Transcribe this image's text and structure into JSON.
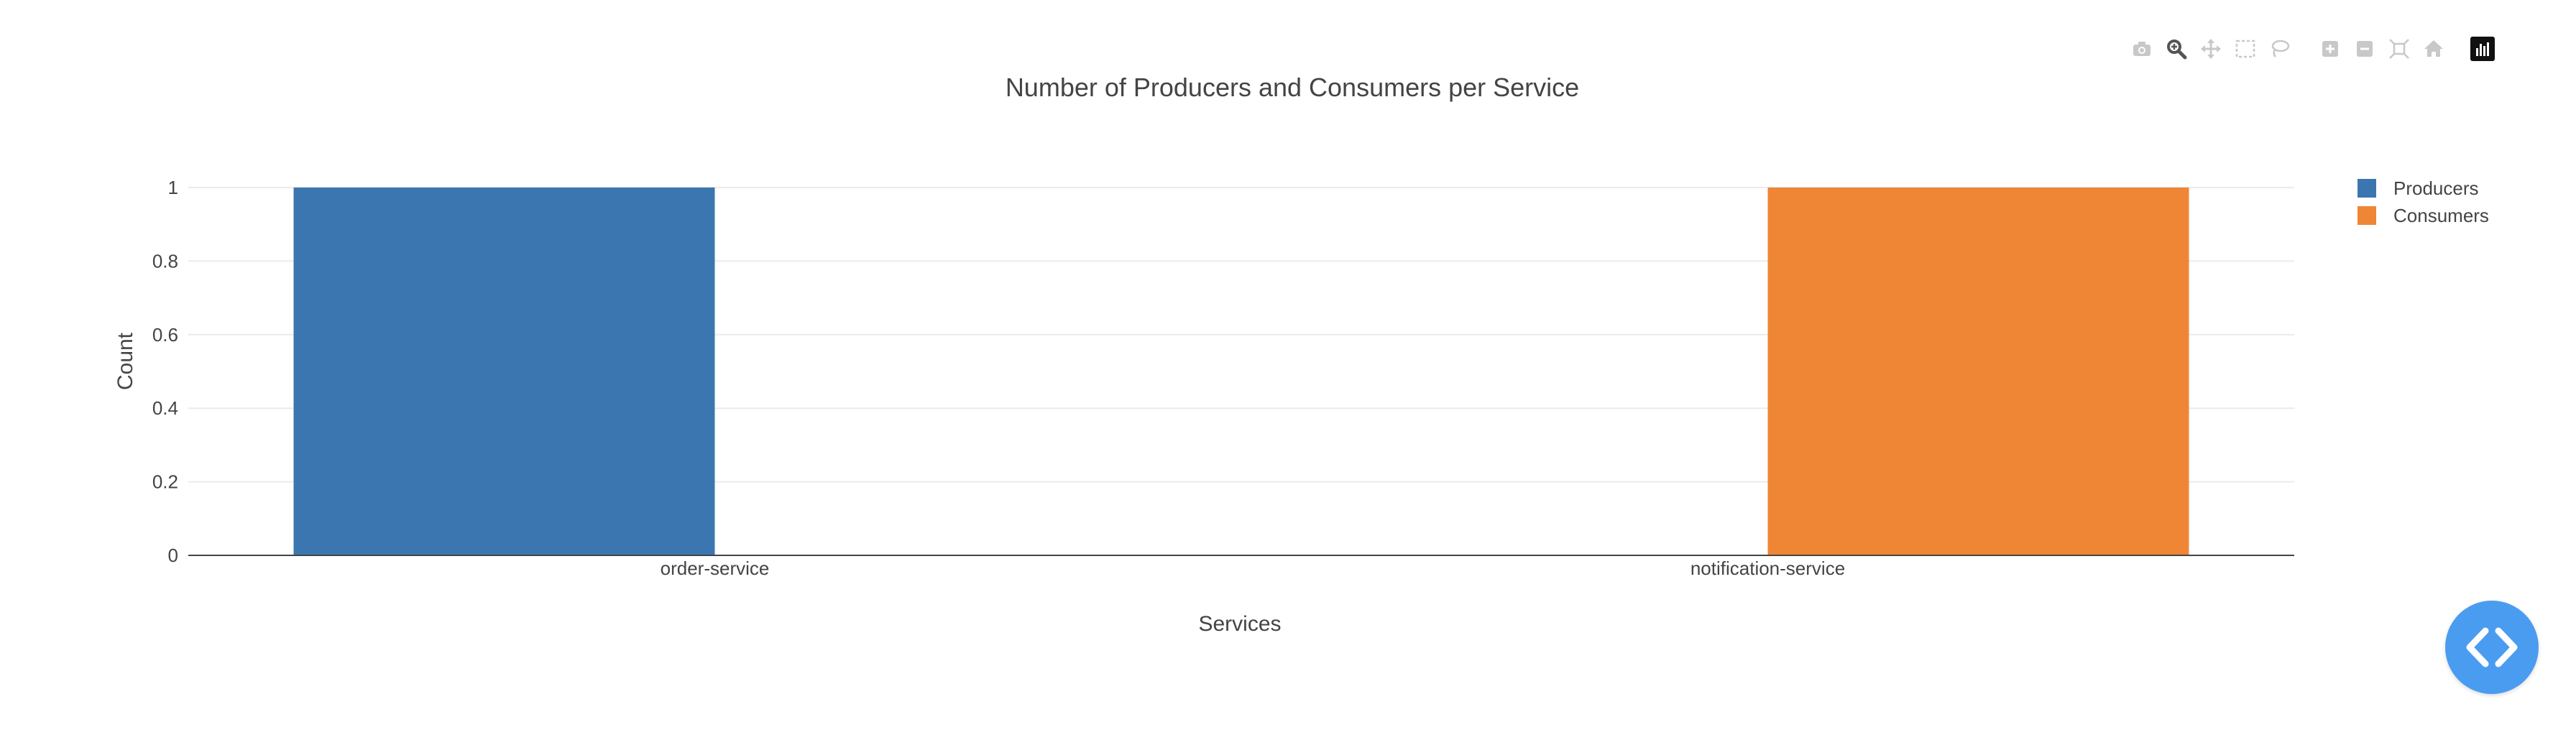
{
  "chart_data": {
    "type": "bar",
    "title": "Number of Producers and Consumers per Service",
    "xlabel": "Services",
    "ylabel": "Count",
    "categories": [
      "order-service",
      "notification-service"
    ],
    "series": [
      {
        "name": "Producers",
        "color": "#3b76b0",
        "values": [
          1,
          0
        ]
      },
      {
        "name": "Consumers",
        "color": "#ef8636",
        "values": [
          0,
          1
        ]
      }
    ],
    "ylim": [
      0,
      1
    ],
    "yticks": [
      "0",
      "0.2",
      "0.4",
      "0.6",
      "0.8",
      "1"
    ],
    "grid": true,
    "legend_position": "top-right"
  },
  "modebar": {
    "icons": [
      "camera-icon",
      "zoom-icon",
      "pan-icon",
      "box-select-icon",
      "lasso-icon",
      "zoom-in-icon",
      "zoom-out-icon",
      "autoscale-icon",
      "reset-axes-icon",
      "plotly-logo-icon"
    ]
  },
  "fab": {
    "icon": "code-icon",
    "color": "#4a9cf0"
  }
}
